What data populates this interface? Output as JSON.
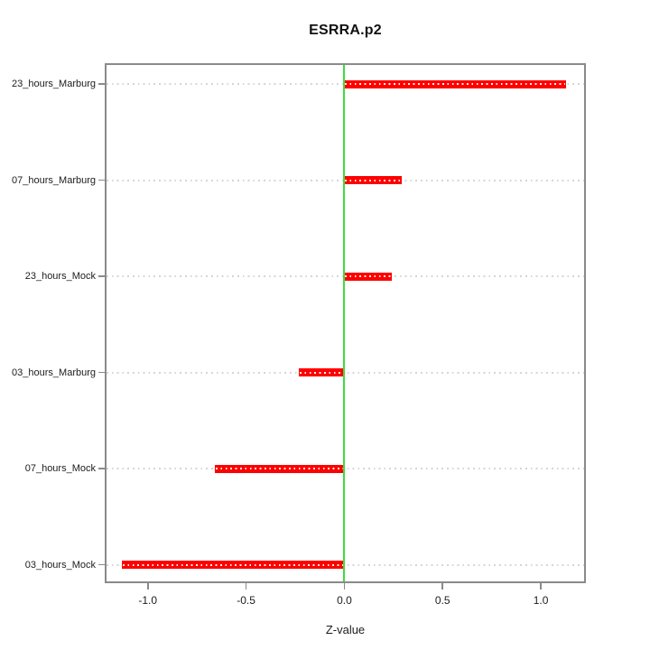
{
  "figure": {
    "title": "ESRRA.p2",
    "x_axis_title": "Z-value"
  },
  "chart_data": {
    "type": "bar",
    "orientation": "horizontal",
    "title": "ESRRA.p2",
    "xlabel": "Z-value",
    "ylabel": "",
    "categories": [
      "23_hours_Marburg",
      "07_hours_Marburg",
      "23_hours_Mock",
      "03_hours_Marburg",
      "07_hours_Mock",
      "03_hours_Mock"
    ],
    "values": [
      1.13,
      0.29,
      0.24,
      -0.23,
      -0.66,
      -1.13
    ],
    "x_tick_values": [
      -1.0,
      -0.5,
      0.0,
      0.5,
      1.0
    ],
    "x_tick_labels": [
      "-1.0",
      "-0.5",
      "0.0",
      "0.5",
      "1.0"
    ],
    "xlim": [
      -1.21,
      1.22
    ],
    "zero_line": 0.0,
    "grid": "horizontal-dotted",
    "legend": "none",
    "colors": {
      "bar": "#fe0000",
      "bar_dots": "#ffffff",
      "zero_line": "#3edc3e",
      "gridline": "#d5d5d5",
      "axis": "#8a8a8a",
      "text": "#1c1c1c",
      "background": "#ffffff"
    }
  }
}
